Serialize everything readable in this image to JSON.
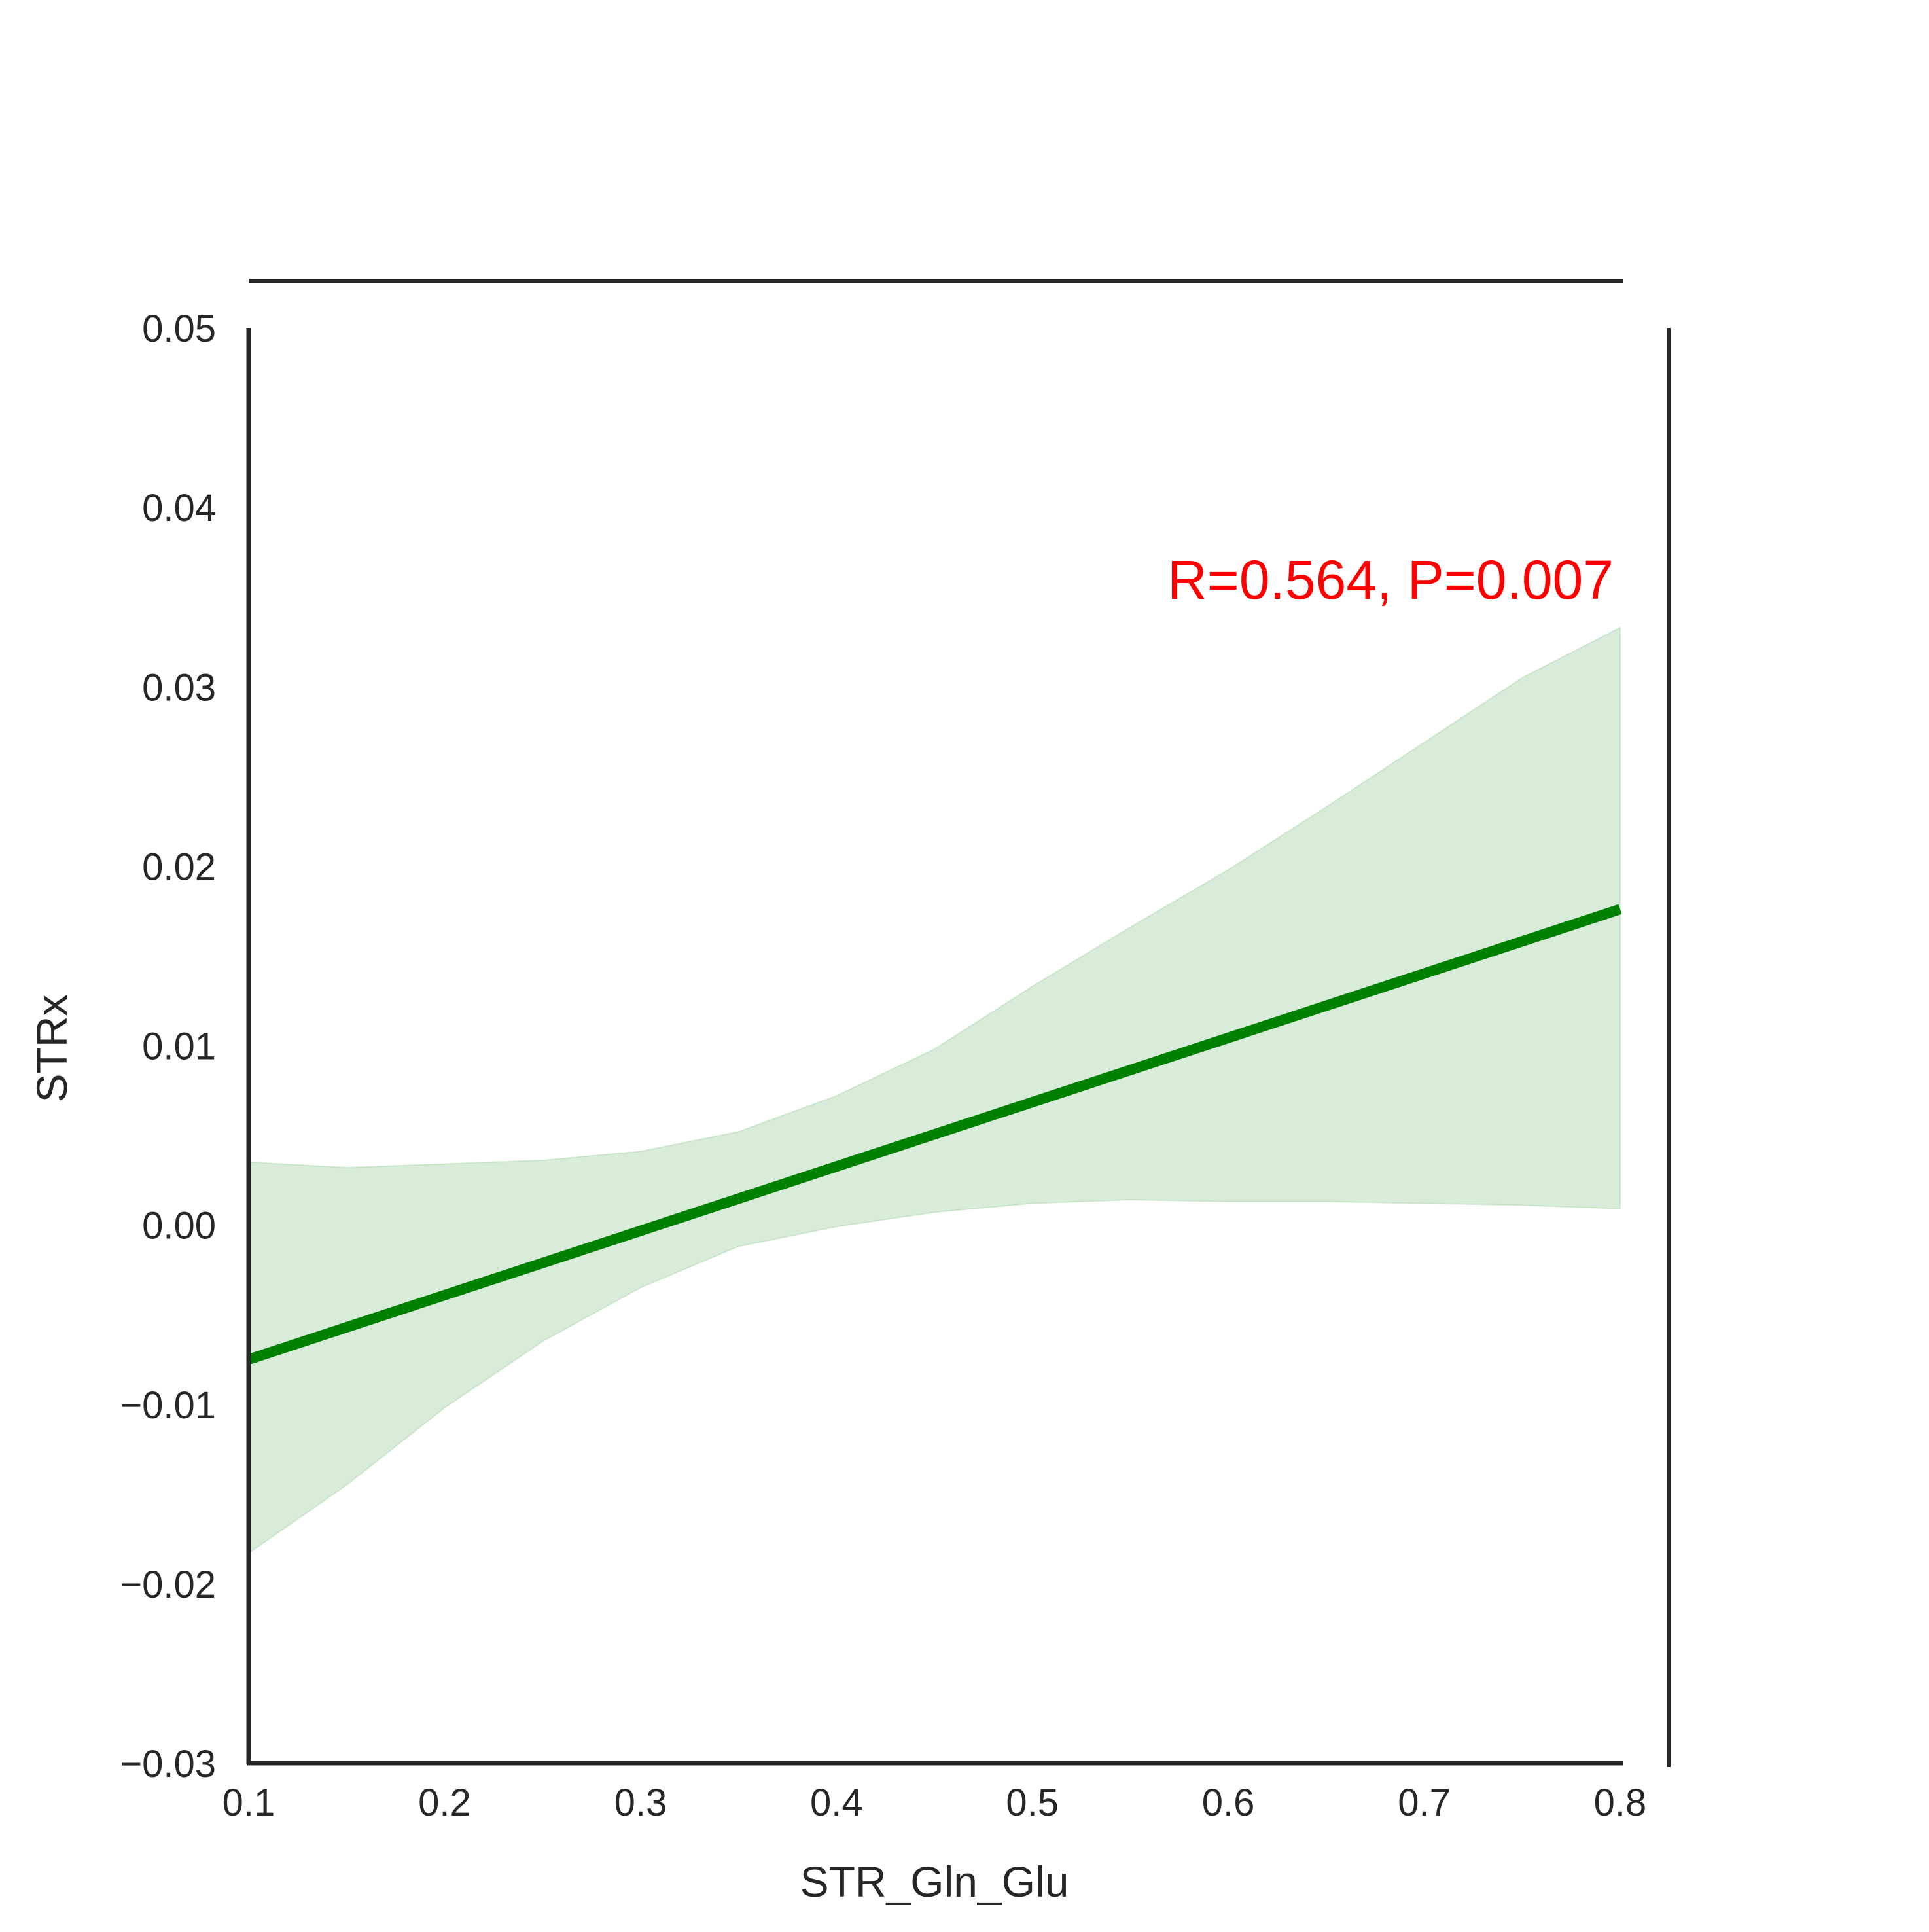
{
  "chart_data": {
    "type": "line",
    "xlabel": "STR_Gln_Glu",
    "ylabel": "STRx",
    "xlim": [
      0.1,
      0.8
    ],
    "ylim": [
      -0.03,
      0.05
    ],
    "x_ticks": [
      "0.1",
      "0.2",
      "0.3",
      "0.4",
      "0.5",
      "0.6",
      "0.7",
      "0.8"
    ],
    "y_ticks": [
      "0.05",
      "0.04",
      "0.03",
      "0.02",
      "0.01",
      "0.00",
      "−0.01",
      "−0.02",
      "−0.03"
    ],
    "grid": false,
    "annotation": {
      "text": "R=0.564, P=0.007",
      "color": "#ff0000"
    },
    "series": [
      {
        "x": [
          0.1,
          0.8
        ],
        "y": [
          -0.0075,
          0.0176
        ],
        "color": "#008000"
      }
    ],
    "confidence_band": {
      "color": "#008000",
      "x": [
        0.1,
        0.15,
        0.2,
        0.25,
        0.3,
        0.35,
        0.4,
        0.45,
        0.5,
        0.55,
        0.6,
        0.65,
        0.7,
        0.75,
        0.8
      ],
      "upper": [
        0.0035,
        0.0032,
        0.0034,
        0.0036,
        0.0041,
        0.0052,
        0.0072,
        0.0098,
        0.0133,
        0.0166,
        0.0198,
        0.0233,
        0.0269,
        0.0305,
        0.0333
      ],
      "lower": [
        -0.0183,
        -0.0145,
        -0.0102,
        -0.0065,
        -0.0035,
        -0.0012,
        -0.0001,
        0.0007,
        0.0012,
        0.0014,
        0.0013,
        0.0013,
        0.0012,
        0.0011,
        0.0009
      ]
    }
  }
}
